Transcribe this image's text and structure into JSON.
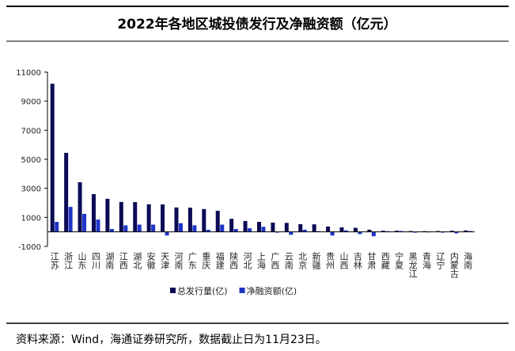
{
  "chart_data": {
    "type": "bar",
    "title": "2022年各地区城投债发行及净融资额（亿元）",
    "source": "资料来源：Wind，海通证券研究所，数据截止日为11月23日。",
    "categories": [
      "江苏",
      "浙江",
      "山东",
      "四川",
      "湖南",
      "江西",
      "湖北",
      "安徽",
      "天津",
      "河南",
      "广东",
      "重庆",
      "福建",
      "陕西",
      "河北",
      "上海",
      "广西",
      "云南",
      "北京",
      "新疆",
      "贵州",
      "山西",
      "吉林",
      "甘肃",
      "西藏",
      "宁夏",
      "黑龙江",
      "青海",
      "辽宁",
      "内蒙古",
      "海南"
    ],
    "series": [
      {
        "name": "总发行量(亿)",
        "color": "#0b0b55",
        "values": [
          10200,
          5440,
          3420,
          2600,
          2280,
          2060,
          2050,
          1900,
          1890,
          1680,
          1670,
          1570,
          1450,
          900,
          750,
          690,
          640,
          620,
          530,
          520,
          370,
          310,
          280,
          150,
          80,
          80,
          60,
          50,
          60,
          80,
          100
        ]
      },
      {
        "name": "净融资额(亿)",
        "color": "#1f35c8",
        "values": [
          690,
          1720,
          1240,
          850,
          200,
          450,
          500,
          500,
          -250,
          600,
          450,
          150,
          500,
          200,
          250,
          350,
          -50,
          -200,
          150,
          50,
          -250,
          100,
          -150,
          -300,
          50,
          60,
          -50,
          -30,
          -50,
          -100,
          60
        ]
      }
    ],
    "ylim": [
      -1000,
      11000
    ],
    "yticks": [
      -1000,
      1000,
      3000,
      5000,
      7000,
      9000,
      11000
    ]
  }
}
